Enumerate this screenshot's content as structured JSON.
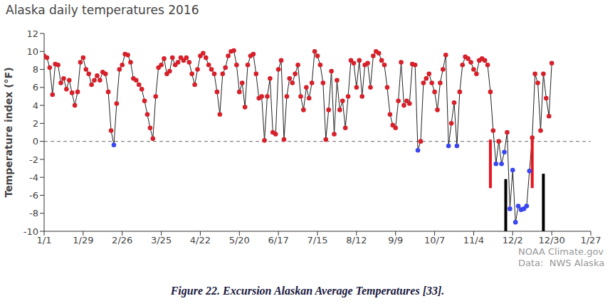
{
  "chart_data": {
    "type": "line",
    "title": "Alaska daily temperatures 2016",
    "ylabel": "Temperature index (°F)",
    "caption": "Figure 22. Excursion Alaskan Average Temperatures [33].",
    "source": [
      "NOAA Climate.gov",
      "Data:  NWS Alaska"
    ],
    "color": "#222222",
    "marker": "circle",
    "line_style": "solid",
    "x": [
      0,
      2,
      4,
      6,
      8,
      10,
      12,
      14,
      16,
      18,
      20,
      22,
      24,
      26,
      28,
      30,
      32,
      34,
      36,
      38,
      40,
      42,
      44,
      46,
      48,
      50,
      52,
      54,
      56,
      58,
      60,
      62,
      64,
      66,
      68,
      70,
      72,
      74,
      76,
      78,
      80,
      82,
      84,
      86,
      88,
      90,
      92,
      94,
      96,
      98,
      100,
      102,
      104,
      106,
      108,
      110,
      112,
      114,
      116,
      118,
      120,
      122,
      124,
      126,
      128,
      130,
      132,
      134,
      136,
      138,
      140,
      142,
      144,
      146,
      148,
      150,
      152,
      154,
      156,
      158,
      160,
      162,
      164,
      166,
      168,
      170,
      172,
      174,
      176,
      178,
      180,
      182,
      184,
      186,
      188,
      190,
      192,
      194,
      196,
      198,
      200,
      202,
      204,
      206,
      208,
      210,
      212,
      214,
      216,
      218,
      220,
      222,
      224,
      226,
      228,
      230,
      232,
      234,
      236,
      238,
      240,
      242,
      244,
      246,
      248,
      250,
      252,
      254,
      256,
      258,
      260,
      262,
      264,
      266,
      268,
      270,
      272,
      274,
      276,
      278,
      280,
      282,
      284,
      286,
      288,
      290,
      292,
      294,
      296,
      298,
      300,
      302,
      304,
      306,
      308,
      310,
      312,
      314,
      316,
      318,
      320,
      322,
      324,
      326,
      328,
      330,
      332,
      334,
      336,
      338,
      340,
      342,
      344,
      346,
      348,
      350,
      352,
      354,
      356,
      358,
      360,
      362,
      364
    ],
    "values": [
      9.5,
      9.3,
      8.2,
      5.2,
      8.6,
      8.5,
      6.5,
      7.0,
      5.8,
      6.8,
      5.4,
      4.0,
      5.5,
      8.8,
      9.3,
      8.0,
      7.5,
      6.3,
      6.8,
      7.3,
      6.8,
      7.7,
      7.5,
      5.5,
      1.2,
      -0.4,
      4.2,
      8.0,
      8.5,
      9.7,
      9.6,
      8.8,
      7.0,
      6.8,
      6.3,
      5.8,
      4.5,
      3.0,
      1.5,
      0.3,
      5.0,
      8.2,
      8.5,
      9.2,
      7.5,
      7.8,
      9.3,
      8.5,
      8.8,
      9.3,
      9.0,
      9.3,
      8.8,
      7.5,
      6.3,
      8.0,
      9.5,
      9.8,
      9.3,
      8.5,
      8.0,
      7.5,
      5.5,
      3.0,
      7.5,
      8.2,
      9.5,
      10.0,
      10.1,
      8.5,
      5.5,
      6.5,
      3.8,
      8.5,
      9.5,
      9.7,
      7.5,
      4.8,
      5.0,
      0.1,
      5.0,
      7.0,
      1.0,
      0.8,
      8.0,
      9.0,
      0.2,
      5.0,
      7.0,
      6.5,
      7.5,
      8.5,
      5.0,
      3.5,
      6.0,
      4.8,
      6.5,
      10.0,
      9.5,
      8.5,
      6.5,
      0.2,
      3.5,
      7.8,
      0.8,
      6.8,
      3.5,
      4.5,
      1.5,
      5.0,
      9.0,
      8.7,
      6.0,
      9.0,
      5.0,
      8.5,
      8.7,
      6.0,
      9.5,
      10.0,
      9.8,
      9.0,
      8.5,
      6.0,
      3.0,
      1.8,
      1.5,
      4.5,
      8.8,
      4.0,
      4.5,
      4.2,
      8.6,
      8.5,
      -1.0,
      0.0,
      6.5,
      7.0,
      7.5,
      6.5,
      5.5,
      3.5,
      6.5,
      8.0,
      9.6,
      -0.5,
      2.0,
      4.3,
      -0.5,
      5.5,
      8.5,
      9.4,
      9.2,
      8.8,
      8.0,
      7.5,
      9.0,
      9.2,
      9.0,
      8.5,
      5.5,
      1.2,
      -2.5,
      0.0,
      -2.5,
      -1.2,
      1.0,
      -7.5,
      -3.2,
      -9.0,
      -7.2,
      -7.6,
      -7.5,
      -7.2,
      -3.3,
      0.4,
      7.5,
      6.5,
      1.2,
      7.5,
      4.8,
      2.8,
      8.7
    ],
    "colors": [
      "#d6202a",
      "#d6202a",
      "#d6202a",
      "#d6202a",
      "#d6202a",
      "#d6202a",
      "#d6202a",
      "#d6202a",
      "#d6202a",
      "#d6202a",
      "#d6202a",
      "#d6202a",
      "#d6202a",
      "#d6202a",
      "#d6202a",
      "#d6202a",
      "#d6202a",
      "#d6202a",
      "#d6202a",
      "#d6202a",
      "#d6202a",
      "#d6202a",
      "#d6202a",
      "#d6202a",
      "#d6202a",
      "#3a46f0",
      "#d6202a",
      "#d6202a",
      "#d6202a",
      "#d6202a",
      "#d6202a",
      "#d6202a",
      "#d6202a",
      "#d6202a",
      "#d6202a",
      "#d6202a",
      "#d6202a",
      "#d6202a",
      "#d6202a",
      "#d6202a",
      "#d6202a",
      "#d6202a",
      "#d6202a",
      "#d6202a",
      "#d6202a",
      "#d6202a",
      "#d6202a",
      "#d6202a",
      "#d6202a",
      "#d6202a",
      "#d6202a",
      "#d6202a",
      "#d6202a",
      "#d6202a",
      "#d6202a",
      "#d6202a",
      "#d6202a",
      "#d6202a",
      "#d6202a",
      "#d6202a",
      "#d6202a",
      "#d6202a",
      "#d6202a",
      "#d6202a",
      "#d6202a",
      "#d6202a",
      "#d6202a",
      "#d6202a",
      "#d6202a",
      "#d6202a",
      "#d6202a",
      "#d6202a",
      "#d6202a",
      "#d6202a",
      "#d6202a",
      "#d6202a",
      "#d6202a",
      "#d6202a",
      "#d6202a",
      "#d6202a",
      "#d6202a",
      "#d6202a",
      "#d6202a",
      "#d6202a",
      "#d6202a",
      "#d6202a",
      "#d6202a",
      "#d6202a",
      "#d6202a",
      "#d6202a",
      "#d6202a",
      "#d6202a",
      "#d6202a",
      "#d6202a",
      "#d6202a",
      "#d6202a",
      "#d6202a",
      "#d6202a",
      "#d6202a",
      "#d6202a",
      "#d6202a",
      "#d6202a",
      "#d6202a",
      "#d6202a",
      "#d6202a",
      "#d6202a",
      "#d6202a",
      "#d6202a",
      "#d6202a",
      "#d6202a",
      "#d6202a",
      "#d6202a",
      "#d6202a",
      "#d6202a",
      "#d6202a",
      "#d6202a",
      "#d6202a",
      "#d6202a",
      "#d6202a",
      "#d6202a",
      "#d6202a",
      "#d6202a",
      "#d6202a",
      "#d6202a",
      "#d6202a",
      "#d6202a",
      "#d6202a",
      "#d6202a",
      "#d6202a",
      "#d6202a",
      "#d6202a",
      "#d6202a",
      "#d6202a",
      "#d6202a",
      "#3a46f0",
      "#d6202a",
      "#d6202a",
      "#d6202a",
      "#d6202a",
      "#d6202a",
      "#d6202a",
      "#d6202a",
      "#d6202a",
      "#d6202a",
      "#d6202a",
      "#3a46f0",
      "#d6202a",
      "#d6202a",
      "#3a46f0",
      "#d6202a",
      "#d6202a",
      "#d6202a",
      "#d6202a",
      "#d6202a",
      "#d6202a",
      "#d6202a",
      "#d6202a",
      "#d6202a",
      "#d6202a",
      "#d6202a",
      "#d6202a",
      "#d6202a",
      "#3a46f0",
      "#d6202a",
      "#3a46f0",
      "#3a46f0",
      "#d6202a",
      "#3a46f0",
      "#3a46f0",
      "#3a46f0",
      "#3a46f0",
      "#3a46f0",
      "#3a46f0",
      "#3a46f0",
      "#3a46f0",
      "#d6202a",
      "#d6202a",
      "#d6202a",
      "#d6202a",
      "#d6202a",
      "#d6202a",
      "#d6202a",
      "#d6202a"
    ],
    "xlim": [
      0,
      392
    ],
    "xticks": [
      {
        "value": 0,
        "label": "1/1"
      },
      {
        "value": 28,
        "label": "1/29"
      },
      {
        "value": 56,
        "label": "2/26"
      },
      {
        "value": 84,
        "label": "3/25"
      },
      {
        "value": 112,
        "label": "4/22"
      },
      {
        "value": 140,
        "label": "5/20"
      },
      {
        "value": 168,
        "label": "6/17"
      },
      {
        "value": 196,
        "label": "7/15"
      },
      {
        "value": 224,
        "label": "8/12"
      },
      {
        "value": 252,
        "label": "9/9"
      },
      {
        "value": 280,
        "label": "10/7"
      },
      {
        "value": 308,
        "label": "11/4"
      },
      {
        "value": 336,
        "label": "12/2"
      },
      {
        "value": 364,
        "label": "12/30"
      },
      {
        "value": 392,
        "label": "1/27"
      }
    ],
    "ylim": [
      -10,
      12
    ],
    "yticks": [
      -10,
      -8,
      -6,
      -4,
      -2,
      0,
      2,
      4,
      6,
      8,
      10,
      12
    ],
    "reference_lines": [
      {
        "y": 0,
        "line_style": "dashed",
        "color": "#888888"
      }
    ],
    "vertical_bars": [
      {
        "x": 320,
        "y": [
          -5.2,
          0.2
        ],
        "color": "#e8141f"
      },
      {
        "x": 350,
        "y": [
          -5.2,
          0.5
        ],
        "color": "#e8141f"
      },
      {
        "x": 331,
        "y": [
          -10,
          -4.2
        ],
        "color": "#000000"
      },
      {
        "x": 358,
        "y": [
          -10,
          -3.6
        ],
        "color": "#000000"
      }
    ]
  }
}
